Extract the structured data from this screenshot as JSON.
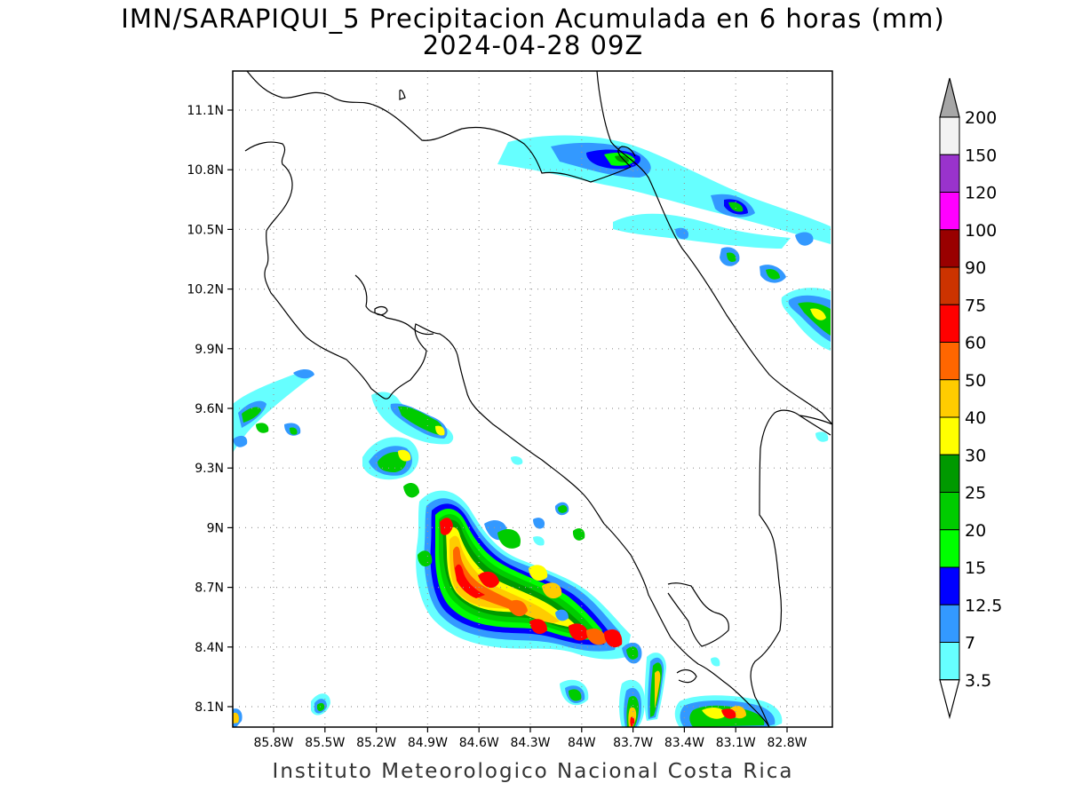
{
  "title_line1": "IMN/SARAPIQUI_5 Precipitacion Acumulada en 6 horas (mm)",
  "title_line2": "2024-04-28 09Z",
  "credit": "Instituto Meteorologico Nacional Costa Rica",
  "lat_labels": [
    "11.1N",
    "10.8N",
    "10.5N",
    "10.2N",
    "9.9N",
    "9.6N",
    "9.3N",
    "9N",
    "8.7N",
    "8.4N",
    "8.1N"
  ],
  "lon_labels": [
    "85.8W",
    "85.5W",
    "85.2W",
    "84.9W",
    "84.6W",
    "84.3W",
    "84W",
    "83.7W",
    "83.4W",
    "83.1W",
    "82.8W"
  ],
  "colorbar": {
    "labels": [
      "200",
      "150",
      "120",
      "100",
      "90",
      "75",
      "60",
      "50",
      "40",
      "30",
      "25",
      "20",
      "15",
      "12.5",
      "7",
      "3.5"
    ],
    "colors": [
      "#f2f2f2",
      "#9933cc",
      "#ff00ff",
      "#990000",
      "#cc3300",
      "#ff0000",
      "#ff6600",
      "#ffcc00",
      "#ffff00",
      "#009900",
      "#00cc00",
      "#00ff00",
      "#0000ff",
      "#3399ff",
      "#66ffff"
    ],
    "over_color": "#a6a6a6",
    "under_color": "#ffffff"
  },
  "precip_colors": {
    "c35": "#66ffff",
    "c7": "#3399ff",
    "c125": "#0000ff",
    "c15": "#00ff00",
    "c20": "#00cc00",
    "c25": "#009900",
    "c30": "#ffff00",
    "c40": "#ffcc00",
    "c50": "#ff6600",
    "c60": "#ff0000"
  }
}
